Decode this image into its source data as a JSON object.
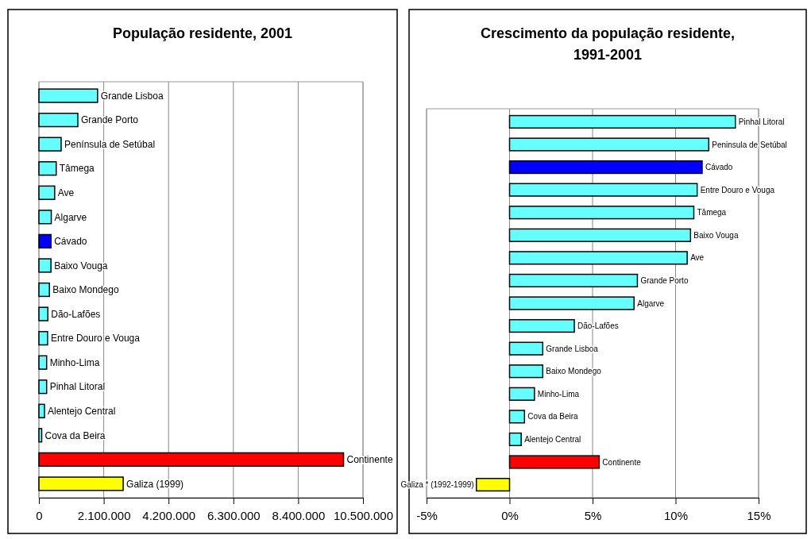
{
  "chart_data": [
    {
      "type": "bar",
      "orientation": "horizontal",
      "title": "População residente, 2001",
      "categories": [
        "Grande Lisboa",
        "Grande Porto",
        "Península de Setúbal",
        "Tâmega",
        "Ave",
        "Algarve",
        "Cávado",
        "Baixo Vouga",
        "Baixo Mondego",
        "Dão-Lafões",
        "Entre Douro e Vouga",
        "Minho-Lima",
        "Pinhal Litoral",
        "Alentejo Central",
        "Cova da Beira",
        "Continente",
        "Galiza  (1999)"
      ],
      "values": [
        1900000,
        1260000,
        720000,
        560000,
        510000,
        400000,
        390000,
        390000,
        340000,
        290000,
        280000,
        250000,
        250000,
        180000,
        90000,
        9870000,
        2730000
      ],
      "colors": [
        "#66ffff",
        "#66ffff",
        "#66ffff",
        "#66ffff",
        "#66ffff",
        "#66ffff",
        "#0000ff",
        "#66ffff",
        "#66ffff",
        "#66ffff",
        "#66ffff",
        "#66ffff",
        "#66ffff",
        "#66ffff",
        "#66ffff",
        "#ff0000",
        "#ffff00"
      ],
      "xlim": [
        0,
        10500000
      ],
      "xticks": [
        0,
        {
          "value": 2100000,
          "label": "2.100.000"
        },
        {
          "value": 4200000,
          "label": "4.200.000"
        },
        {
          "value": 6300000,
          "label": "6.300.000"
        },
        {
          "value": 8400000,
          "label": "8.400.000"
        },
        {
          "value": 10500000,
          "label": "10.500.000"
        }
      ],
      "grid": "x"
    },
    {
      "type": "bar",
      "orientation": "horizontal",
      "title": "Crescimento da população residente, 1991-2001",
      "categories": [
        "Pinhal Litoral",
        "Peninsula de Setúbal",
        "Cávado",
        "Entre Douro e Vouga",
        "Tâmega",
        "Baixo Vouga",
        "Ave",
        "Grande Porto",
        "Algarve",
        "Dão-Lafões",
        "Grande Lisboa",
        "Baixo Mondego",
        "Minho-Lima",
        "Cova da Beira",
        "Alentejo Central",
        "Continente",
        "Galiza * (1992-1999)"
      ],
      "values": [
        13.6,
        12.0,
        11.6,
        11.3,
        11.1,
        10.9,
        10.7,
        7.7,
        7.5,
        3.9,
        2.0,
        2.0,
        1.5,
        0.9,
        0.7,
        5.4,
        -2.0
      ],
      "colors": [
        "#66ffff",
        "#66ffff",
        "#0000ff",
        "#66ffff",
        "#66ffff",
        "#66ffff",
        "#66ffff",
        "#66ffff",
        "#66ffff",
        "#66ffff",
        "#66ffff",
        "#66ffff",
        "#66ffff",
        "#66ffff",
        "#66ffff",
        "#ff0000",
        "#ffff00"
      ],
      "xlim": [
        -5,
        15
      ],
      "xticks": [
        {
          "value": -5,
          "label": "-5%"
        },
        {
          "value": 0,
          "label": "0%"
        },
        {
          "value": 5,
          "label": "5%"
        },
        {
          "value": 10,
          "label": "10%"
        },
        {
          "value": 15,
          "label": "15%"
        }
      ],
      "grid": "x"
    }
  ]
}
